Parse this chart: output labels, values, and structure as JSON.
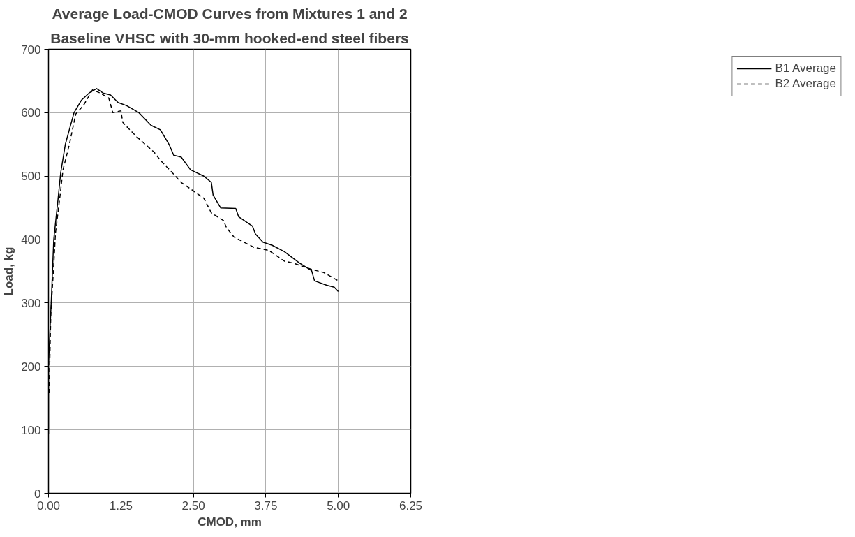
{
  "chart_data": {
    "type": "line",
    "title": "Average Load-CMOD Curves from Mixtures 1 and 2",
    "subtitle": "Baseline VHSC with 30-mm hooked-end steel fibers",
    "xlabel": "CMOD, mm",
    "ylabel": "Load, kg",
    "xlim": [
      0,
      6.25
    ],
    "xticks": [
      {
        "value": 0,
        "label": "0.00"
      },
      1.25,
      {
        "value": 2.5,
        "label": "2.50"
      },
      3.75,
      {
        "value": 5,
        "label": "5.00"
      },
      6.25
    ],
    "ylim": [
      0,
      700
    ],
    "yticks": [
      0,
      100,
      200,
      300,
      400,
      500,
      600,
      700
    ],
    "grid": true,
    "legend": "right",
    "marker": "none",
    "series": [
      {
        "name": "B1 Average",
        "color": "#000000",
        "line_style": "solid",
        "x": [
          0,
          0,
          0.05,
          0.09,
          0.16,
          0.21,
          0.29,
          0.44,
          0.57,
          0.7,
          0.83,
          0.94,
          1.07,
          1.2,
          1.35,
          1.56,
          1.77,
          1.93,
          2.08,
          2.16,
          2.29,
          2.45,
          2.68,
          2.81,
          2.84,
          2.97,
          3.23,
          3.28,
          3.52,
          3.57,
          3.7,
          3.86,
          4.07,
          4.33,
          4.54,
          4.59,
          4.8,
          4.93,
          5.0
        ],
        "values": [
          93,
          203,
          309,
          400,
          460,
          505,
          550,
          600,
          620,
          631,
          638,
          631,
          628,
          616,
          611,
          600,
          580,
          573,
          550,
          533,
          530,
          510,
          500,
          490,
          470,
          450,
          449,
          436,
          421,
          409,
          396,
          391,
          381,
          363,
          351,
          335,
          328,
          325,
          318
        ]
      },
      {
        "name": "B2 Average",
        "color": "#000000",
        "line_style": "dashed",
        "x": [
          0.01,
          0.04,
          0.09,
          0.12,
          0.2,
          0.25,
          0.36,
          0.47,
          0.6,
          0.76,
          0.89,
          1.04,
          1.11,
          1.25,
          1.28,
          1.35,
          1.51,
          1.67,
          1.82,
          1.93,
          2.14,
          2.29,
          2.45,
          2.68,
          2.81,
          3.02,
          3.07,
          3.2,
          3.54,
          3.8,
          4.07,
          4.22,
          4.54,
          4.75,
          5.0
        ],
        "values": [
          158,
          284,
          359,
          410,
          470,
          510,
          550,
          598,
          611,
          636,
          631,
          623,
          600,
          603,
          585,
          578,
          563,
          550,
          538,
          525,
          505,
          490,
          480,
          465,
          442,
          430,
          419,
          404,
          388,
          383,
          366,
          363,
          353,
          348,
          335
        ]
      }
    ]
  }
}
